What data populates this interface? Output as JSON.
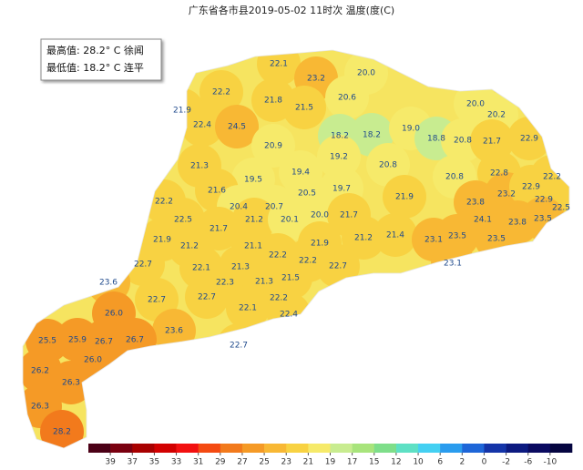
{
  "title": "广东省各市县2019-05-02 11时次 温度(度(C)",
  "info": [
    "最高值: 28.2° C 徐闻",
    "最低值: 18.2° C 连平"
  ],
  "stations": [
    22.1,
    23.2,
    {
      "value": 20,
      "label": "20.0"
    },
    22.2,
    21.8,
    20.6,
    {
      "value": 20,
      "label": "20.0"
    },
    21.9,
    22.4,
    24.5,
    21.5,
    20.2,
    18.2,
    18.2,
    {
      "value": 19,
      "label": "19.0"
    },
    18.8,
    20.8,
    21.7,
    22.9,
    20.9,
    19.2,
    20.8,
    21.3,
    19.5,
    19.4,
    19.7,
    20.5,
    22.8,
    22.2,
    20.8,
    21.6,
    22.2,
    20.4,
    20.7,
    21.9,
    23.2,
    22.9,
    22.9,
    22.5,
    23.8,
    23.5,
    22.5,
    21.2,
    20.1,
    {
      "value": 20,
      "label": "20.0"
    },
    21.7,
    24.1,
    23.8,
    21.7,
    21.9,
    21.2,
    21.1,
    21.9,
    21.2,
    21.4,
    23.1,
    23.5,
    23.5,
    23.1,
    22.7,
    22.2,
    22.1,
    21.3,
    22.2,
    22.7,
    23.6,
    22.3,
    21.3,
    21.5,
    22.7,
    22.7,
    22.2,
    {
      "value": 26,
      "label": "26.0"
    },
    22.1,
    22.4,
    23.6,
    25.5,
    25.9,
    26.7,
    26.7,
    22.7,
    {
      "value": 26,
      "label": "26.0"
    },
    26.2,
    26.3,
    26.3,
    28.2
  ],
  "colorbar": {
    "ticks": [
      39,
      37,
      35,
      33,
      31,
      29,
      27,
      25,
      23,
      21,
      19,
      17,
      15,
      12,
      10,
      6,
      2,
      0,
      -2,
      -6,
      -10
    ],
    "colors": [
      "#4b0016",
      "#7a0010",
      "#a80000",
      "#d20000",
      "#f21010",
      "#f44a12",
      "#f27a1c",
      "#f59a26",
      "#f8b834",
      "#f8d242",
      "#f6ea6a",
      "#c8ec90",
      "#a8e47c",
      "#7ede8a",
      "#5ee0c4",
      "#44d0f2",
      "#2a9cee",
      "#1e66d8",
      "#1434a8",
      "#0c1a80",
      "#0a0a60",
      "#050540"
    ]
  }
}
